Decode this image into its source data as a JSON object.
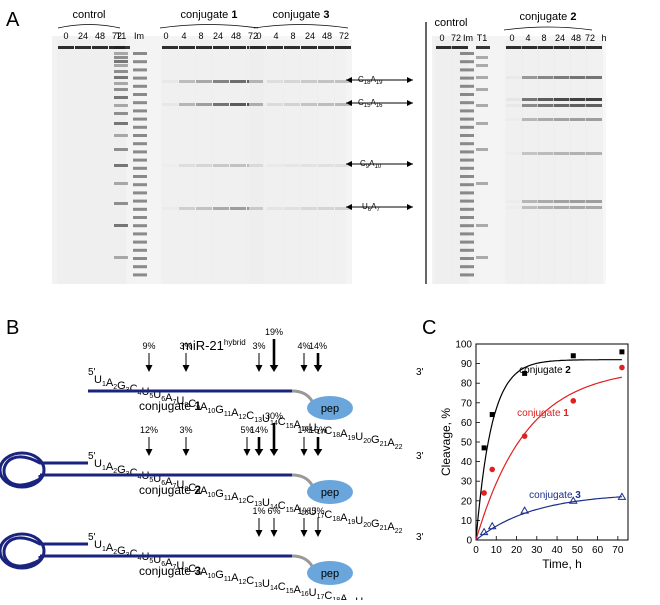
{
  "panels": {
    "a": "A",
    "b": "B",
    "c": "C"
  },
  "gel_left": {
    "groups": [
      {
        "label": "control",
        "lanes": [
          "0",
          "24",
          "48",
          "72"
        ]
      },
      {
        "label": "conjugate 1",
        "lanes": [
          "0",
          "4",
          "8",
          "24",
          "48",
          "72"
        ]
      },
      {
        "label": "conjugate 3",
        "lanes": [
          "0",
          "4",
          "8",
          "24",
          "48",
          "72"
        ]
      }
    ],
    "marker_lanes": [
      "T1",
      "Im"
    ],
    "cleavage_sites": [
      "C18A19",
      "C15A16",
      "C9A10",
      "U6A7"
    ]
  },
  "gel_right": {
    "groups": [
      {
        "label": "control",
        "lanes": [
          "0",
          "72"
        ]
      },
      {
        "label": "conjugate 2",
        "lanes": [
          "0",
          "4",
          "8",
          "24",
          "48",
          "72"
        ]
      }
    ],
    "marker_lanes": [
      "Im",
      "T1"
    ],
    "unit": "h"
  },
  "scheme": {
    "title": "miR-21",
    "title_sup": "hybrid",
    "five_prime": "5'",
    "three_prime": "3'",
    "pep": "pep",
    "nucleotides": [
      [
        "U",
        "1"
      ],
      [
        "A",
        "2"
      ],
      [
        "G",
        "3"
      ],
      [
        "C",
        "4"
      ],
      [
        "U",
        "5"
      ],
      [
        "U",
        "6"
      ],
      [
        "A",
        "7"
      ],
      [
        "U",
        "8"
      ],
      [
        "C",
        "9"
      ],
      [
        "A",
        "10"
      ],
      [
        "G",
        "11"
      ],
      [
        "A",
        "12"
      ],
      [
        "C",
        "13"
      ],
      [
        "U",
        "14"
      ],
      [
        "C",
        "15"
      ],
      [
        "A",
        "16"
      ],
      [
        "U",
        "17"
      ],
      [
        "C",
        "18"
      ],
      [
        "A",
        "19"
      ],
      [
        "U",
        "20"
      ],
      [
        "G",
        "21"
      ],
      [
        "A",
        "22"
      ]
    ],
    "conjugates": [
      {
        "label": "conjugate",
        "num": "1",
        "sites": [
          {
            "pct": "9%",
            "pos": 6
          },
          {
            "pct": "3%",
            "pos": 9
          },
          {
            "pct": "3%",
            "pos": 14
          },
          {
            "pct": "19%",
            "pos": 15
          },
          {
            "pct": "4%",
            "pos": 17
          },
          {
            "pct": "14%",
            "pos": 18
          }
        ]
      },
      {
        "label": "conjugate",
        "num": "2",
        "sites": [
          {
            "pct": "12%",
            "pos": 6
          },
          {
            "pct": "3%",
            "pos": 9
          },
          {
            "pct": "5%",
            "pos": 13
          },
          {
            "pct": "14%",
            "pos": 14
          },
          {
            "pct": "30%",
            "pos": 15
          },
          {
            "pct": "1%",
            "pos": 17
          },
          {
            "pct": "16%",
            "pos": 18
          }
        ]
      },
      {
        "label": "conjugate",
        "num": "3",
        "sites": [
          {
            "pct": "1%",
            "pos": 14
          },
          {
            "pct": "6%",
            "pos": 15
          },
          {
            "pct": "1%",
            "pos": 17
          },
          {
            "pct": "5%",
            "pos": 18
          }
        ]
      }
    ]
  },
  "chart_data": {
    "type": "scatter",
    "xlabel": "Time, h",
    "ylabel": "Cleavage, %",
    "xlim": [
      0,
      75
    ],
    "ylim": [
      0,
      100
    ],
    "xticks": [
      "0",
      "10",
      "20",
      "30",
      "40",
      "50",
      "60",
      "70"
    ],
    "yticks": [
      "0",
      "10",
      "20",
      "30",
      "40",
      "50",
      "60",
      "70",
      "80",
      "90",
      "100"
    ],
    "series": [
      {
        "name": "conjugate 2",
        "color": "#000000",
        "marker": "square",
        "x": [
          4,
          8,
          24,
          48,
          72
        ],
        "y": [
          47,
          64,
          85,
          94,
          96
        ],
        "fit": {
          "amax": 92,
          "k": 0.13
        }
      },
      {
        "name": "conjugate 1",
        "color": "#e02020",
        "marker": "circle",
        "x": [
          4,
          8,
          24,
          48,
          72
        ],
        "y": [
          24,
          36,
          53,
          71,
          88
        ],
        "fit": {
          "amax": 88,
          "k": 0.04
        }
      },
      {
        "name": "conjugate 3",
        "color": "#1a2f8c",
        "marker": "triangle-open",
        "x": [
          4,
          8,
          24,
          48,
          72
        ],
        "y": [
          4,
          7,
          15,
          20,
          22
        ],
        "fit": {
          "amax": 24,
          "k": 0.035
        }
      }
    ]
  }
}
